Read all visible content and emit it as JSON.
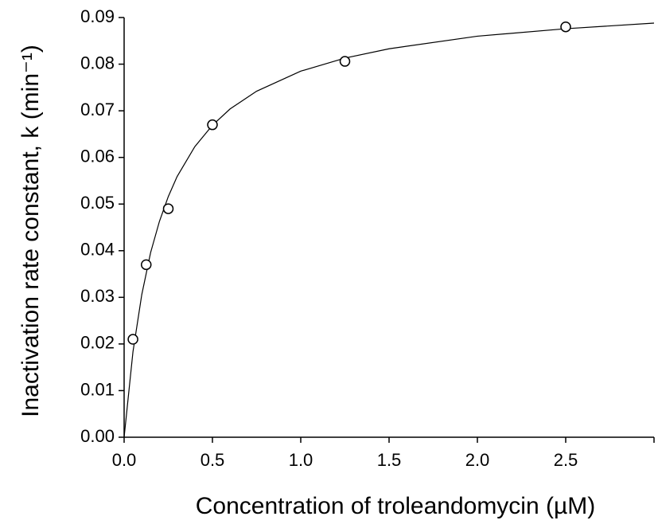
{
  "chart_data": {
    "type": "scatter",
    "xlabel": "Concentration of troleandomycin  (µM)",
    "ylabel": "Inactivation rate constant, k (min⁻¹)",
    "xlim": [
      0,
      3
    ],
    "ylim": [
      0,
      0.09
    ],
    "xticks": [
      {
        "value": 0,
        "label": "0.0"
      },
      0.5,
      {
        "value": 1,
        "label": "1.0"
      },
      1.5,
      {
        "value": 2,
        "label": "2.0"
      },
      2.5
    ],
    "yticks": [
      {
        "value": 0,
        "label": "0.00"
      },
      0.01,
      0.02,
      0.03,
      0.04,
      0.05,
      0.06,
      0.07,
      0.08,
      0.09
    ],
    "grid": false,
    "points": {
      "color": "#000000",
      "x": [
        0.05,
        0.125,
        0.25,
        0.5,
        1.25,
        2.5
      ],
      "values": [
        0.021,
        0.037,
        0.049,
        0.067,
        0.0806,
        0.088
      ]
    },
    "fit": {
      "color": "#000000",
      "x": [
        0,
        0.05,
        0.1,
        0.15,
        0.2,
        0.25,
        0.3,
        0.4,
        0.5,
        0.6,
        0.75,
        1,
        1.25,
        1.5,
        2,
        2.5,
        3
      ],
      "values": [
        0,
        0.0183,
        0.0306,
        0.0396,
        0.0463,
        0.0516,
        0.0559,
        0.0623,
        0.0669,
        0.0704,
        0.0742,
        0.0785,
        0.0813,
        0.0833,
        0.086,
        0.0876,
        0.0888
      ]
    }
  }
}
